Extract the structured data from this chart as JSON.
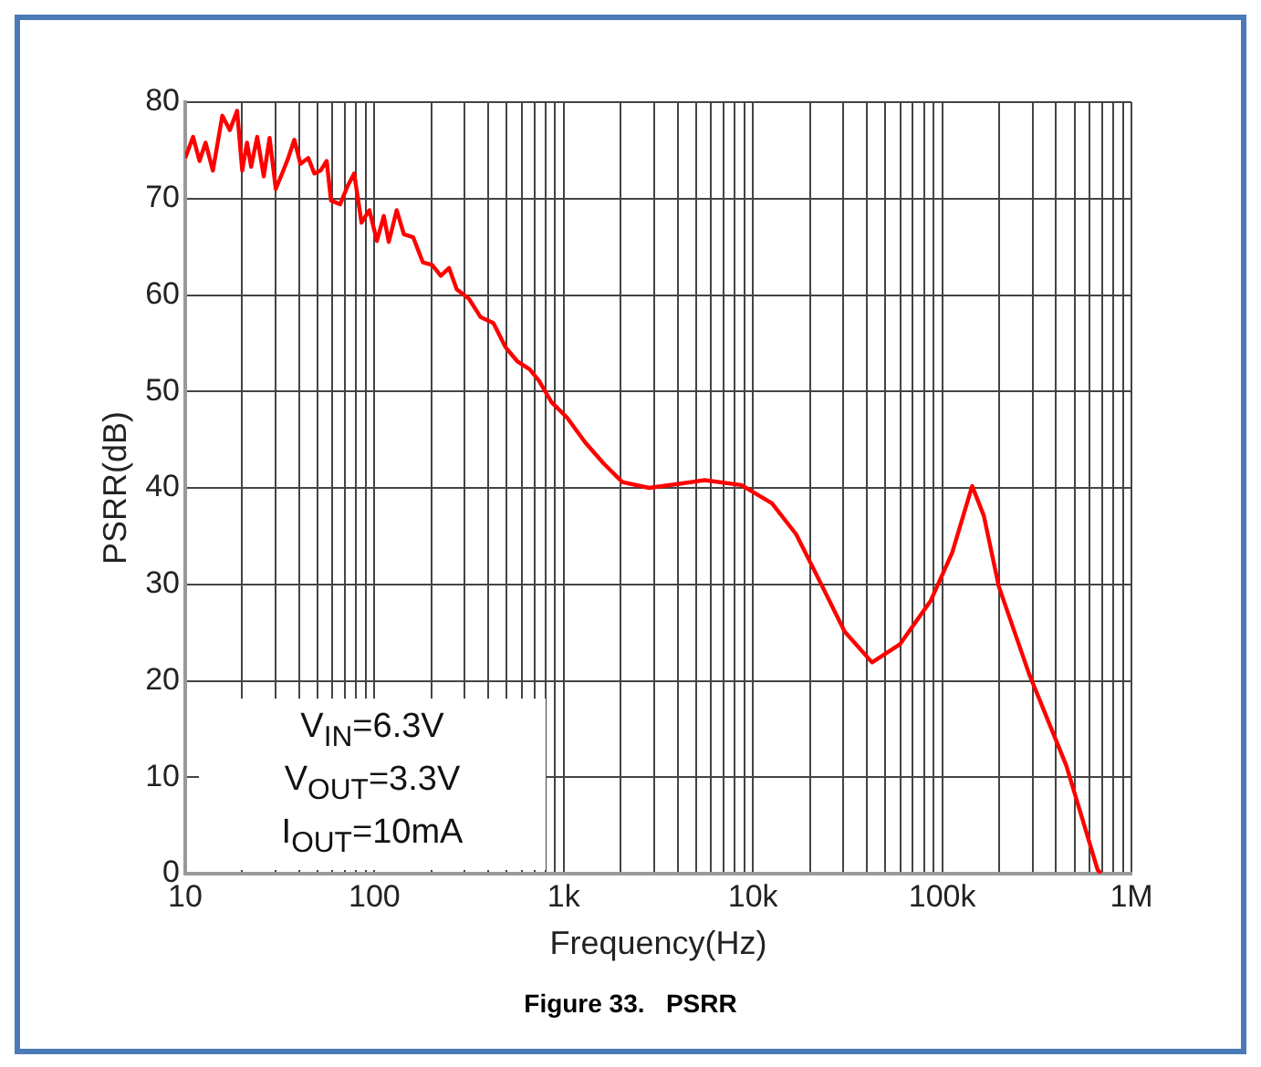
{
  "chart_data": {
    "type": "line",
    "title": "Figure 33.   PSRR",
    "xlabel": "Frequency(Hz)",
    "ylabel": "PSRR(dB)",
    "annotations": [
      "V$_{IN}$=6.3V",
      "V$_{OUT}$=3.3V",
      "I$_{OUT}$=10mA"
    ],
    "log": "x",
    "grid": true,
    "legend": false,
    "marker": "none",
    "line_style": "solid",
    "xlim": [
      10,
      1000000
    ],
    "ylim": [
      0,
      80
    ],
    "yticks": [
      0,
      10,
      20,
      30,
      40,
      50,
      60,
      70,
      80
    ],
    "xticks": [
      10,
      {
        "value": 20,
        "label": null
      },
      {
        "value": 30,
        "label": null
      },
      {
        "value": 40,
        "label": null
      },
      {
        "value": 50,
        "label": null
      },
      {
        "value": 60,
        "label": null
      },
      {
        "value": 70,
        "label": null
      },
      {
        "value": 80,
        "label": null
      },
      {
        "value": 90,
        "label": null
      },
      100,
      {
        "value": 200,
        "label": null
      },
      {
        "value": 300,
        "label": null
      },
      {
        "value": 400,
        "label": null
      },
      {
        "value": 500,
        "label": null
      },
      {
        "value": 600,
        "label": null
      },
      {
        "value": 700,
        "label": null
      },
      {
        "value": 800,
        "label": null
      },
      {
        "value": 900,
        "label": null
      },
      {
        "value": 1000,
        "label": "1k"
      },
      {
        "value": 2000,
        "label": null
      },
      {
        "value": 3000,
        "label": null
      },
      {
        "value": 4000,
        "label": null
      },
      {
        "value": 5000,
        "label": null
      },
      {
        "value": 6000,
        "label": null
      },
      {
        "value": 7000,
        "label": null
      },
      {
        "value": 8000,
        "label": null
      },
      {
        "value": 9000,
        "label": null
      },
      {
        "value": 10000,
        "label": "10k"
      },
      {
        "value": 20000,
        "label": null
      },
      {
        "value": 30000,
        "label": null
      },
      {
        "value": 40000,
        "label": null
      },
      {
        "value": 50000,
        "label": null
      },
      {
        "value": 60000,
        "label": null
      },
      {
        "value": 70000,
        "label": null
      },
      {
        "value": 80000,
        "label": null
      },
      {
        "value": 90000,
        "label": null
      },
      {
        "value": 100000,
        "label": "100k"
      },
      {
        "value": 200000,
        "label": null
      },
      {
        "value": 300000,
        "label": null
      },
      {
        "value": 400000,
        "label": null
      },
      {
        "value": 500000,
        "label": null
      },
      {
        "value": 600000,
        "label": null
      },
      {
        "value": 700000,
        "label": null
      },
      {
        "value": 800000,
        "label": null
      },
      {
        "value": 900000,
        "label": null
      },
      {
        "value": 1000000,
        "label": "1M"
      }
    ],
    "series": [
      {
        "color": "#ff0000",
        "x": [
          10,
          11,
          11.9,
          12.8,
          14,
          15.7,
          17.2,
          18.8,
          20,
          21.2,
          22.3,
          24,
          26,
          27.9,
          30.1,
          32.5,
          35,
          37.7,
          40.6,
          44.7,
          48.1,
          51.9,
          55.9,
          58.9,
          65.8,
          72.1,
          78.1,
          85.4,
          94,
          103,
          112,
          119,
          131,
          143,
          160,
          180,
          202,
          224,
          248,
          272,
          316,
          364,
          425,
          492,
          570,
          660,
          741,
          861,
          1040,
          1300,
          1630,
          2040,
          2830,
          5550,
          8680,
          12600,
          16900,
          22700,
          30500,
          42600,
          59900,
          87000,
          113000,
          144000,
          166000,
          199000,
          288000,
          453000,
          663000,
          690000
        ],
        "values": [
          74.2,
          76.4,
          73.9,
          75.8,
          72.9,
          78.6,
          77.1,
          79.1,
          72.9,
          75.8,
          73.3,
          76.4,
          72.3,
          76.3,
          71,
          72.6,
          74.2,
          76.1,
          73.6,
          74.2,
          72.6,
          72.9,
          73.9,
          69.8,
          69.4,
          71.3,
          72.6,
          67.5,
          68.8,
          65.6,
          68.2,
          65.5,
          68.8,
          66.3,
          66,
          63.4,
          63.1,
          62,
          62.8,
          60.6,
          59.6,
          57.7,
          57.1,
          54.6,
          53.1,
          52.3,
          51.1,
          48.9,
          47.3,
          44.7,
          42.5,
          40.6,
          40,
          40.8,
          40.3,
          38.4,
          35.2,
          30.2,
          25.1,
          21.9,
          23.8,
          28.3,
          33.3,
          40.2,
          37.1,
          29.8,
          20.7,
          11.2,
          0.4,
          0
        ]
      }
    ]
  }
}
